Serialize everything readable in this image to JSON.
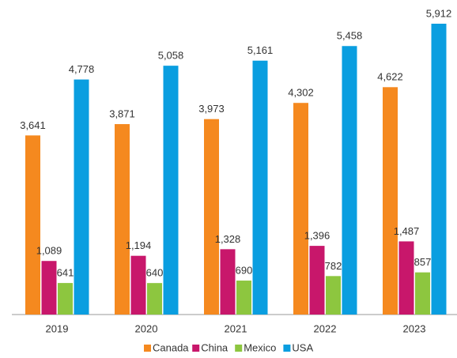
{
  "chart_data": {
    "type": "bar",
    "categories": [
      "2019",
      "2020",
      "2021",
      "2022",
      "2023"
    ],
    "series": [
      {
        "name": "Canada",
        "color": "#f5891f",
        "values": [
          3641,
          3871,
          3973,
          4302,
          4622
        ],
        "value_labels": [
          "3,641",
          "3,871",
          "3,973",
          "4,302",
          "4,622"
        ]
      },
      {
        "name": "China",
        "color": "#c8176b",
        "values": [
          1089,
          1194,
          1328,
          1396,
          1487
        ],
        "value_labels": [
          "1,089",
          "1,194",
          "1,328",
          "1,396",
          "1,487"
        ]
      },
      {
        "name": "Mexico",
        "color": "#8dc63f",
        "values": [
          641,
          640,
          690,
          782,
          857
        ]
      },
      {
        "name": "USA",
        "color": "#0a9ee0",
        "values": [
          4778,
          5058,
          5161,
          5458,
          5912
        ],
        "value_labels": [
          "4,778",
          "5,058",
          "5,161",
          "5,458",
          "5,912"
        ]
      }
    ],
    "legend": "bottom"
  }
}
